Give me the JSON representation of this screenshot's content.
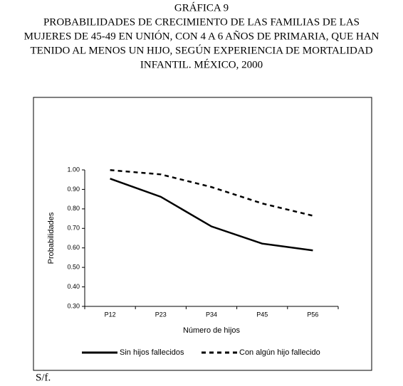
{
  "chart_data": {
    "type": "line",
    "title": [
      "GRÁFICA 9",
      "PROBABILIDADES DE CRECIMIENTO DE LAS FAMILIAS DE LAS",
      "MUJERES DE 45-49 EN UNIÓN, CON 4 A 6 AÑOS DE PRIMARIA, QUE HAN",
      "TENIDO AL MENOS UN HIJO, SEGÚN EXPERIENCIA DE MORTALIDAD",
      "INFANTIL. MÉXICO, 2000"
    ],
    "x_label": "Número de hijos",
    "y_label": "Probabilidades",
    "categories": [
      "P12",
      "P23",
      "P34",
      "P45",
      "P56"
    ],
    "series": [
      {
        "name": "Sin hijos fallecidos",
        "color": "#000000",
        "dash": "solid",
        "values": [
          0.955,
          0.862,
          0.71,
          0.622,
          0.587
        ]
      },
      {
        "name": "Con algún hijo fallecido",
        "color": "#000000",
        "dash": "dashed",
        "values": [
          0.999,
          0.977,
          0.912,
          0.828,
          0.765
        ]
      }
    ],
    "ylim": [
      0.3,
      1.0
    ],
    "yticks": [
      {
        "value": 0.3,
        "label": "0.30"
      },
      {
        "value": 0.4,
        "label": "0.40"
      },
      {
        "value": 0.5,
        "label": "0.50"
      },
      {
        "value": 0.6,
        "label": "0.60"
      },
      {
        "value": 0.7,
        "label": "0.70"
      },
      {
        "value": 0.8,
        "label": "0.80"
      },
      {
        "value": 0.9,
        "label": "0.90"
      },
      {
        "value": 1.0,
        "label": "1.00"
      }
    ],
    "legend": "bottom",
    "footnote": "S/f."
  }
}
